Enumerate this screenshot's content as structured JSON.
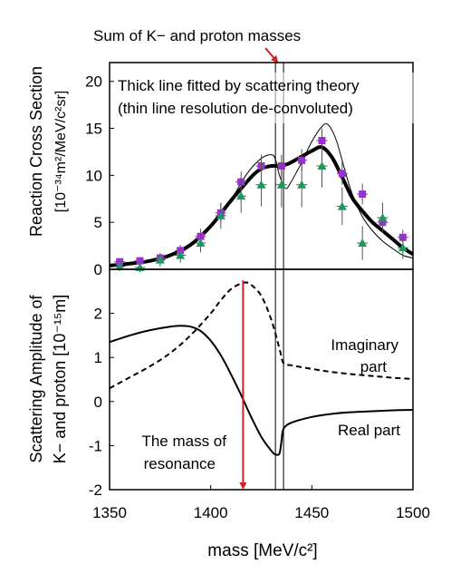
{
  "chart_data": [
    {
      "type": "scatter",
      "title": "",
      "annotation_top": "Sum of K− and proton masses",
      "box_note_line1": "Thick line fitted by scattering theory",
      "box_note_line2": "(thin line resolution de-convoluted)",
      "ylabel_line1": "Reaction Cross Section",
      "ylabel_line2": "[10⁻³⁴m²/MeV/c²sr]",
      "xlim": [
        1350,
        1500
      ],
      "ylim": [
        0,
        22
      ],
      "yticks": [
        "0",
        "5",
        "10",
        "15",
        "20"
      ],
      "threshold_mass": [
        1432,
        1436
      ],
      "series": [
        {
          "marker": "square",
          "color": "#9b30d0",
          "points": [
            {
              "x": 1355,
              "y": 0.8,
              "err": 0.4
            },
            {
              "x": 1365,
              "y": 0.9,
              "err": 0.4
            },
            {
              "x": 1375,
              "y": 1.2,
              "err": 0.5
            },
            {
              "x": 1385,
              "y": 2.0,
              "err": 0.6
            },
            {
              "x": 1395,
              "y": 3.5,
              "err": 0.8
            },
            {
              "x": 1405,
              "y": 6.0,
              "err": 1.0
            },
            {
              "x": 1415,
              "y": 9.3,
              "err": 1.1
            },
            {
              "x": 1425,
              "y": 11.0,
              "err": 1.2
            },
            {
              "x": 1435,
              "y": 11.0,
              "err": 1.2
            },
            {
              "x": 1445,
              "y": 11.6,
              "err": 1.2
            },
            {
              "x": 1455,
              "y": 13.7,
              "err": 1.3
            },
            {
              "x": 1465,
              "y": 10.2,
              "err": 1.2
            },
            {
              "x": 1475,
              "y": 8.0,
              "err": 1.1
            },
            {
              "x": 1485,
              "y": 5.0,
              "err": 0.9
            },
            {
              "x": 1495,
              "y": 3.4,
              "err": 0.8
            }
          ]
        },
        {
          "marker": "triangle",
          "color": "#1a9a5c",
          "points": [
            {
              "x": 1355,
              "y": 0.3,
              "err": 0.5
            },
            {
              "x": 1365,
              "y": 0.2,
              "err": 0.5
            },
            {
              "x": 1375,
              "y": 1.0,
              "err": 0.7
            },
            {
              "x": 1385,
              "y": 1.5,
              "err": 0.8
            },
            {
              "x": 1395,
              "y": 2.8,
              "err": 1.0
            },
            {
              "x": 1405,
              "y": 5.7,
              "err": 1.4
            },
            {
              "x": 1415,
              "y": 7.8,
              "err": 1.8
            },
            {
              "x": 1425,
              "y": 9.0,
              "err": 2.3
            },
            {
              "x": 1435,
              "y": 9.0,
              "err": 2.4
            },
            {
              "x": 1445,
              "y": 9.0,
              "err": 2.4
            },
            {
              "x": 1455,
              "y": 11.0,
              "err": 2.3
            },
            {
              "x": 1465,
              "y": 6.7,
              "err": 2.0
            },
            {
              "x": 1475,
              "y": 2.8,
              "err": 1.8
            },
            {
              "x": 1485,
              "y": 5.5,
              "err": 1.6
            },
            {
              "x": 1495,
              "y": 2.3,
              "err": 1.2
            }
          ]
        }
      ],
      "fit_curve": [
        [
          1350,
          0.4
        ],
        [
          1360,
          0.6
        ],
        [
          1370,
          0.9
        ],
        [
          1380,
          1.5
        ],
        [
          1390,
          2.6
        ],
        [
          1400,
          4.6
        ],
        [
          1410,
          7.3
        ],
        [
          1420,
          9.8
        ],
        [
          1425,
          10.7
        ],
        [
          1430,
          11.0
        ],
        [
          1434,
          11.0
        ],
        [
          1438,
          11.2
        ],
        [
          1445,
          12.0
        ],
        [
          1450,
          12.6
        ],
        [
          1455,
          13.0
        ],
        [
          1460,
          11.9
        ],
        [
          1465,
          9.8
        ],
        [
          1470,
          7.6
        ],
        [
          1475,
          6.2
        ],
        [
          1480,
          5.0
        ],
        [
          1485,
          4.1
        ],
        [
          1490,
          3.2
        ],
        [
          1495,
          2.3
        ],
        [
          1500,
          1.6
        ]
      ],
      "deconv_curve": [
        [
          1350,
          0.3
        ],
        [
          1360,
          0.5
        ],
        [
          1370,
          0.8
        ],
        [
          1380,
          1.4
        ],
        [
          1390,
          2.5
        ],
        [
          1400,
          4.5
        ],
        [
          1410,
          7.4
        ],
        [
          1418,
          10.2
        ],
        [
          1425,
          11.8
        ],
        [
          1430,
          12.2
        ],
        [
          1432,
          11.7
        ],
        [
          1434,
          10.0
        ],
        [
          1437,
          8.6
        ],
        [
          1440,
          9.4
        ],
        [
          1445,
          11.4
        ],
        [
          1450,
          13.6
        ],
        [
          1455,
          15.2
        ],
        [
          1458,
          15.4
        ],
        [
          1462,
          13.8
        ],
        [
          1466,
          10.8
        ],
        [
          1470,
          8.0
        ],
        [
          1475,
          5.6
        ],
        [
          1480,
          4.1
        ],
        [
          1485,
          3.0
        ],
        [
          1490,
          2.2
        ],
        [
          1495,
          1.5
        ],
        [
          1500,
          1.2
        ]
      ]
    },
    {
      "type": "line",
      "title": "",
      "ylabel_line1": "Scattering Amplitude of",
      "ylabel_line2": "K− and proton [10⁻¹⁵m]",
      "xlabel": "mass [MeV/c²]",
      "xlim": [
        1350,
        1500
      ],
      "ylim": [
        -2,
        3
      ],
      "xticks": [
        "1350",
        "1400",
        "1450",
        "1500"
      ],
      "yticks": [
        "-2",
        "-1",
        "0",
        "1",
        "2"
      ],
      "resonance_mass": 1416,
      "threshold_mass": [
        1432,
        1436
      ],
      "labels": {
        "imaginary_line1": "Imaginary",
        "imaginary_line2": "part",
        "real": "Real part",
        "resonance_line1": "The mass of",
        "resonance_line2": "resonance"
      },
      "series": [
        {
          "name": "Real part",
          "style": "solid",
          "points": [
            [
              1350,
              1.35
            ],
            [
              1360,
              1.5
            ],
            [
              1370,
              1.62
            ],
            [
              1380,
              1.7
            ],
            [
              1385,
              1.72
            ],
            [
              1390,
              1.7
            ],
            [
              1395,
              1.6
            ],
            [
              1400,
              1.38
            ],
            [
              1405,
              1.05
            ],
            [
              1410,
              0.62
            ],
            [
              1415,
              0.15
            ],
            [
              1420,
              -0.35
            ],
            [
              1425,
              -0.8
            ],
            [
              1430,
              -1.12
            ],
            [
              1432,
              -1.2
            ],
            [
              1434,
              -1.18
            ],
            [
              1435,
              -0.9
            ],
            [
              1436,
              -0.62
            ],
            [
              1440,
              -0.48
            ],
            [
              1450,
              -0.35
            ],
            [
              1460,
              -0.28
            ],
            [
              1470,
              -0.24
            ],
            [
              1480,
              -0.22
            ],
            [
              1490,
              -0.2
            ],
            [
              1500,
              -0.19
            ]
          ]
        },
        {
          "name": "Imaginary part",
          "style": "dashed",
          "points": [
            [
              1350,
              0.3
            ],
            [
              1360,
              0.55
            ],
            [
              1370,
              0.8
            ],
            [
              1380,
              1.1
            ],
            [
              1390,
              1.5
            ],
            [
              1400,
              2.0
            ],
            [
              1405,
              2.3
            ],
            [
              1410,
              2.55
            ],
            [
              1415,
              2.68
            ],
            [
              1418,
              2.7
            ],
            [
              1420,
              2.65
            ],
            [
              1425,
              2.4
            ],
            [
              1430,
              1.85
            ],
            [
              1434,
              1.2
            ],
            [
              1436,
              0.87
            ],
            [
              1440,
              0.82
            ],
            [
              1450,
              0.74
            ],
            [
              1460,
              0.67
            ],
            [
              1470,
              0.62
            ],
            [
              1480,
              0.58
            ],
            [
              1490,
              0.54
            ],
            [
              1500,
              0.51
            ]
          ]
        }
      ]
    }
  ]
}
